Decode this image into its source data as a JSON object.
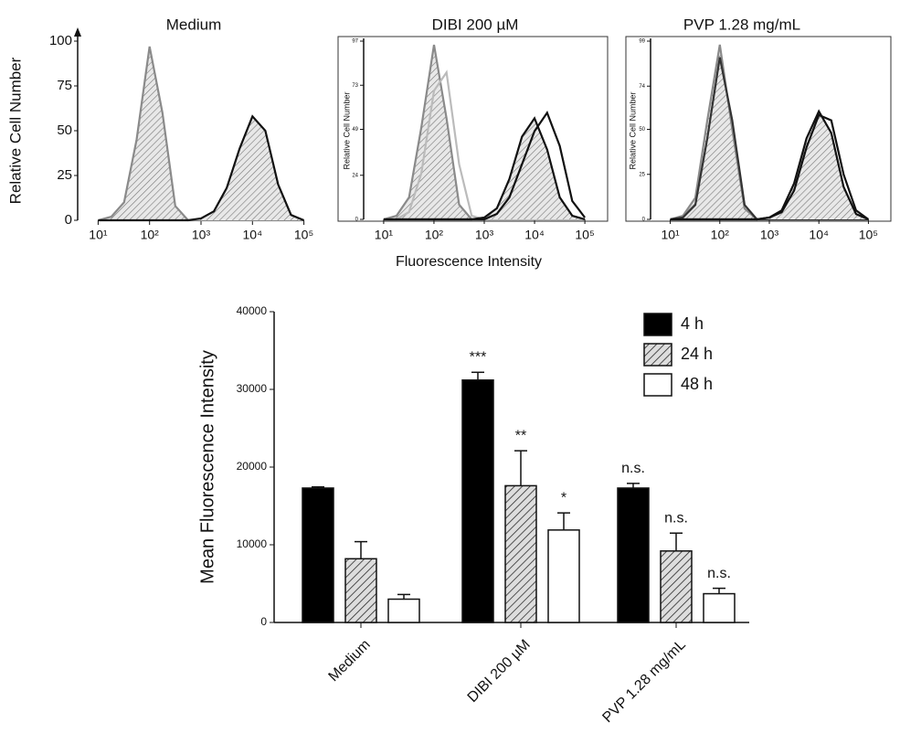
{
  "chart_data": [
    {
      "type": "line",
      "title": "Medium",
      "ylabel": "Relative Cell Number",
      "xscale": "log",
      "x": [
        10,
        18,
        32,
        56,
        100,
        178,
        316,
        562,
        1000,
        1778,
        3162,
        5623,
        10000,
        17783,
        31623,
        56234,
        100000
      ],
      "series": [
        {
          "color": "#8a8a8a",
          "hatch": true,
          "values": [
            0,
            2,
            10,
            45,
            97,
            60,
            8,
            0,
            0,
            0,
            0,
            0,
            0,
            0,
            0,
            0,
            0
          ]
        },
        {
          "color": "#111111",
          "hatch": true,
          "values": [
            0,
            0,
            0,
            0,
            0,
            0,
            0,
            0,
            1,
            5,
            18,
            40,
            58,
            50,
            20,
            3,
            0
          ]
        }
      ],
      "xlim": [
        4,
        250000
      ],
      "xticks": [
        {
          "value": 10,
          "label": "10¹"
        },
        {
          "value": 100,
          "label": "10²"
        },
        {
          "value": 1000,
          "label": "10³"
        },
        {
          "value": 10000,
          "label": "10⁴"
        },
        {
          "value": 100000,
          "label": "10⁵"
        }
      ],
      "ylim": [
        0,
        100
      ],
      "yticks": [
        0,
        25,
        50,
        75,
        100
      ]
    },
    {
      "type": "line",
      "title": "DIBI 200 µM",
      "ylabel": "Relative Cell Number",
      "xlabel": "Fluorescence Intensity",
      "xscale": "log",
      "x": [
        10,
        18,
        32,
        56,
        100,
        178,
        316,
        562,
        1000,
        1778,
        3162,
        5623,
        10000,
        17783,
        31623,
        56234,
        100000
      ],
      "series": [
        {
          "color": "#8a8a8a",
          "hatch": true,
          "values": [
            0,
            2,
            12,
            50,
            95,
            55,
            8,
            0,
            0,
            0,
            0,
            0,
            0,
            0,
            0,
            0,
            0
          ]
        },
        {
          "color": "#bbbbbb",
          "hatch": false,
          "values": [
            0,
            0,
            4,
            25,
            70,
            80,
            30,
            2,
            0,
            0,
            0,
            0,
            0,
            0,
            0,
            0,
            0
          ]
        },
        {
          "color": "#111111",
          "hatch": true,
          "values": [
            0,
            0,
            0,
            0,
            0,
            0,
            0,
            0,
            1,
            6,
            22,
            45,
            55,
            38,
            12,
            2,
            0
          ]
        },
        {
          "color": "#111111",
          "hatch": false,
          "values": [
            0,
            0,
            0,
            0,
            0,
            0,
            0,
            0,
            0,
            3,
            12,
            30,
            48,
            58,
            40,
            10,
            1
          ]
        }
      ],
      "xlim": [
        4,
        250000
      ],
      "xticks": [
        {
          "value": 10,
          "label": "10¹"
        },
        {
          "value": 100,
          "label": "10²"
        },
        {
          "value": 1000,
          "label": "10³"
        },
        {
          "value": 10000,
          "label": "10⁴"
        },
        {
          "value": 100000,
          "label": "10⁵"
        }
      ],
      "ylim": [
        0,
        97
      ],
      "yticks": [
        0,
        24,
        49,
        73,
        97
      ]
    },
    {
      "type": "line",
      "title": "PVP 1.28 mg/mL",
      "ylabel": "Relative Cell Number",
      "xscale": "log",
      "x": [
        10,
        18,
        32,
        56,
        100,
        178,
        316,
        562,
        1000,
        1778,
        3162,
        5623,
        10000,
        17783,
        31623,
        56234,
        100000
      ],
      "series": [
        {
          "color": "#8a8a8a",
          "hatch": true,
          "values": [
            0,
            2,
            12,
            55,
            97,
            50,
            6,
            0,
            0,
            0,
            0,
            0,
            0,
            0,
            0,
            0,
            0
          ]
        },
        {
          "color": "#333333",
          "hatch": false,
          "values": [
            0,
            1,
            8,
            45,
            90,
            55,
            8,
            0,
            0,
            0,
            0,
            0,
            0,
            0,
            0,
            0,
            0
          ]
        },
        {
          "color": "#111111",
          "hatch": true,
          "values": [
            0,
            0,
            0,
            0,
            0,
            0,
            0,
            0,
            1,
            5,
            20,
            45,
            60,
            48,
            18,
            3,
            0
          ]
        },
        {
          "color": "#111111",
          "hatch": false,
          "values": [
            0,
            0,
            0,
            0,
            0,
            0,
            0,
            0,
            1,
            4,
            16,
            40,
            58,
            55,
            25,
            5,
            0
          ]
        }
      ],
      "xlim": [
        4,
        250000
      ],
      "xticks": [
        {
          "value": 10,
          "label": "10¹"
        },
        {
          "value": 100,
          "label": "10²"
        },
        {
          "value": 1000,
          "label": "10³"
        },
        {
          "value": 10000,
          "label": "10⁴"
        },
        {
          "value": 100000,
          "label": "10⁵"
        }
      ],
      "ylim": [
        0,
        99
      ],
      "yticks": [
        0,
        25,
        50,
        74,
        99
      ]
    },
    {
      "type": "bar",
      "ylabel": "Mean Fluorescence Intensity",
      "categories": [
        "Medium",
        "DIBI 200 µM",
        "PVP 1.28 mg/mL"
      ],
      "series": [
        {
          "name": "4 h",
          "color": "#000000",
          "fill": "solid",
          "values": [
            17300,
            31200,
            17300
          ],
          "errors": [
            150,
            1000,
            600
          ],
          "annotations": [
            null,
            "***",
            "n.s."
          ]
        },
        {
          "name": "24 h",
          "color": "#555555",
          "fill": "hatch",
          "values": [
            8200,
            17600,
            9200
          ],
          "errors": [
            2200,
            4500,
            2300
          ],
          "annotations": [
            null,
            "**",
            "n.s."
          ]
        },
        {
          "name": "48 h",
          "color": "#ffffff",
          "fill": "solid",
          "values": [
            3000,
            11900,
            3700
          ],
          "errors": [
            600,
            2200,
            700
          ],
          "annotations": [
            null,
            "*",
            "n.s."
          ]
        }
      ],
      "ylim": [
        0,
        40000
      ],
      "yticks": [
        0,
        10000,
        20000,
        30000,
        40000
      ],
      "legend": "top-right"
    }
  ]
}
